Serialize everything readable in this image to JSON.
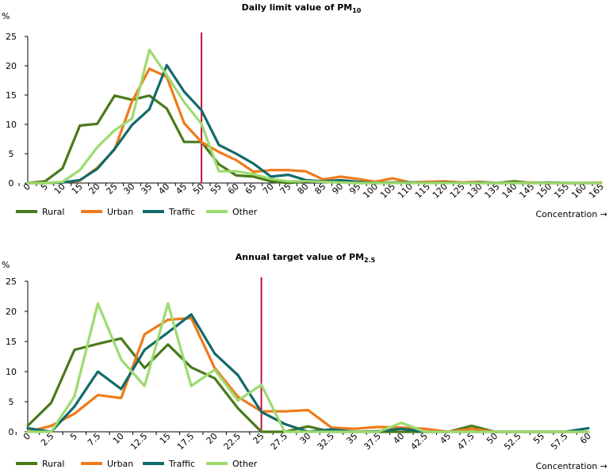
{
  "colors": {
    "Rural": "#4a7a1c",
    "Urban": "#f07a1a",
    "Traffic": "#136a6a",
    "Other": "#9ddb6f",
    "limit_line": "#c0143c",
    "axis": "#000000"
  },
  "chart_data": [
    {
      "type": "line",
      "title_main": "Daily limit value of PM",
      "title_sub": "10",
      "ylabel": "%",
      "xlabel": "Concentration →",
      "ylim": [
        0,
        25
      ],
      "yticks": [
        0,
        5,
        10,
        15,
        20,
        25
      ],
      "x": [
        0,
        5,
        10,
        15,
        20,
        25,
        30,
        35,
        40,
        45,
        50,
        55,
        60,
        65,
        70,
        75,
        80,
        85,
        90,
        95,
        100,
        105,
        110,
        115,
        120,
        125,
        130,
        135,
        140,
        145,
        150,
        155,
        160,
        165
      ],
      "x_tick_labels": [
        "0",
        "5",
        "10",
        "15",
        "20",
        "25",
        "30",
        "35",
        "40",
        "45",
        "50",
        "55",
        "60",
        "65",
        "70",
        "75",
        "80",
        "85",
        "90",
        "95",
        "100",
        "105",
        "110",
        "115",
        "120",
        "125",
        "130",
        "135",
        "140",
        "145",
        "150",
        "155",
        "160",
        "165"
      ],
      "limit_value": 50,
      "series": [
        {
          "name": "Rural",
          "values": [
            0,
            0.3,
            2.5,
            9.8,
            10.1,
            14.9,
            14.2,
            14.9,
            12.7,
            7.0,
            7.0,
            3.2,
            1.3,
            1.1,
            0.3,
            0,
            0.3,
            0.2,
            0.1,
            0,
            0,
            0,
            0.1,
            0.1,
            0.1,
            0,
            0,
            0,
            0.3,
            0,
            0,
            0,
            0,
            0
          ]
        },
        {
          "name": "Urban",
          "values": [
            0,
            0,
            0.1,
            0.4,
            2.6,
            5.7,
            13.9,
            19.5,
            18.1,
            10.2,
            7.0,
            5.3,
            3.9,
            1.9,
            2.2,
            2.2,
            2.0,
            0.6,
            1.1,
            0.7,
            0.2,
            0.8,
            0.1,
            0.2,
            0.3,
            0.1,
            0.2,
            0,
            0,
            0.1,
            0,
            0,
            0,
            0.1
          ]
        },
        {
          "name": "Traffic",
          "values": [
            0,
            0,
            0.1,
            0.5,
            2.4,
            5.8,
            9.9,
            12.6,
            20.1,
            15.6,
            12.4,
            6.5,
            5.0,
            3.3,
            1.1,
            1.4,
            0.5,
            0.3,
            0.5,
            0.2,
            0,
            0.1,
            0.1,
            0,
            0.1,
            0,
            0.1,
            0,
            0,
            0,
            0.1,
            0,
            0,
            0
          ]
        },
        {
          "name": "Other",
          "values": [
            0,
            0,
            0.2,
            2.2,
            6.1,
            9.0,
            11.0,
            22.7,
            18.4,
            13.8,
            10.1,
            2.0,
            2.0,
            1.5,
            0.7,
            0.3,
            0.3,
            0.2,
            0.1,
            0,
            0,
            0,
            0,
            0,
            0,
            0,
            0,
            0,
            0,
            0,
            0,
            0,
            0,
            0
          ]
        }
      ]
    },
    {
      "type": "line",
      "title_main": "Annual target value of PM",
      "title_sub": "2.5",
      "ylabel": "%",
      "xlabel": "Concentration →",
      "ylim": [
        0,
        25
      ],
      "yticks": [
        0,
        5,
        10,
        15,
        20,
        25
      ],
      "x": [
        0,
        2.5,
        5,
        7.5,
        10,
        12.5,
        15,
        17.5,
        20,
        22.5,
        25,
        27.5,
        30,
        32.5,
        35,
        37.5,
        40,
        42.5,
        45,
        47.5,
        50,
        52.5,
        55,
        57.5,
        60
      ],
      "x_tick_labels": [
        "0",
        "2.5",
        "5",
        "7.5",
        "10",
        "12.5",
        "15",
        "17.5",
        "20",
        "22.5",
        "25",
        "27.5",
        "30",
        "32.5",
        "35",
        "37.5",
        "40",
        "42.5",
        "45",
        "47.5",
        "50",
        "52.5",
        "55",
        "57.5",
        "60"
      ],
      "limit_value": 25,
      "series": [
        {
          "name": "Rural",
          "values": [
            1.0,
            4.8,
            13.6,
            14.6,
            15.5,
            10.6,
            14.5,
            10.7,
            8.9,
            3.9,
            0,
            0,
            0.9,
            0,
            0,
            0,
            0,
            0,
            0,
            1.0,
            0,
            0,
            0,
            0,
            0
          ]
        },
        {
          "name": "Urban",
          "values": [
            0,
            1.0,
            3.0,
            6.1,
            5.6,
            16.2,
            18.6,
            18.9,
            10.6,
            5.8,
            3.4,
            3.4,
            3.6,
            0.7,
            0.5,
            0.8,
            0.7,
            0.5,
            0,
            0.5,
            0,
            0,
            0,
            0,
            0
          ]
        },
        {
          "name": "Traffic",
          "values": [
            0.6,
            0,
            4.2,
            10.0,
            7.1,
            13.6,
            16.5,
            19.5,
            13.0,
            9.4,
            3.3,
            1.3,
            0,
            0.4,
            0,
            0.1,
            0.5,
            0,
            0,
            0,
            0,
            0,
            0,
            0,
            0.6
          ]
        },
        {
          "name": "Other",
          "values": [
            0,
            0,
            5.9,
            21.3,
            12.0,
            7.6,
            21.3,
            7.6,
            10.3,
            5.2,
            7.8,
            0,
            0,
            0,
            0,
            0,
            1.5,
            0,
            0,
            0,
            0,
            0,
            0,
            0,
            0
          ]
        }
      ]
    }
  ]
}
